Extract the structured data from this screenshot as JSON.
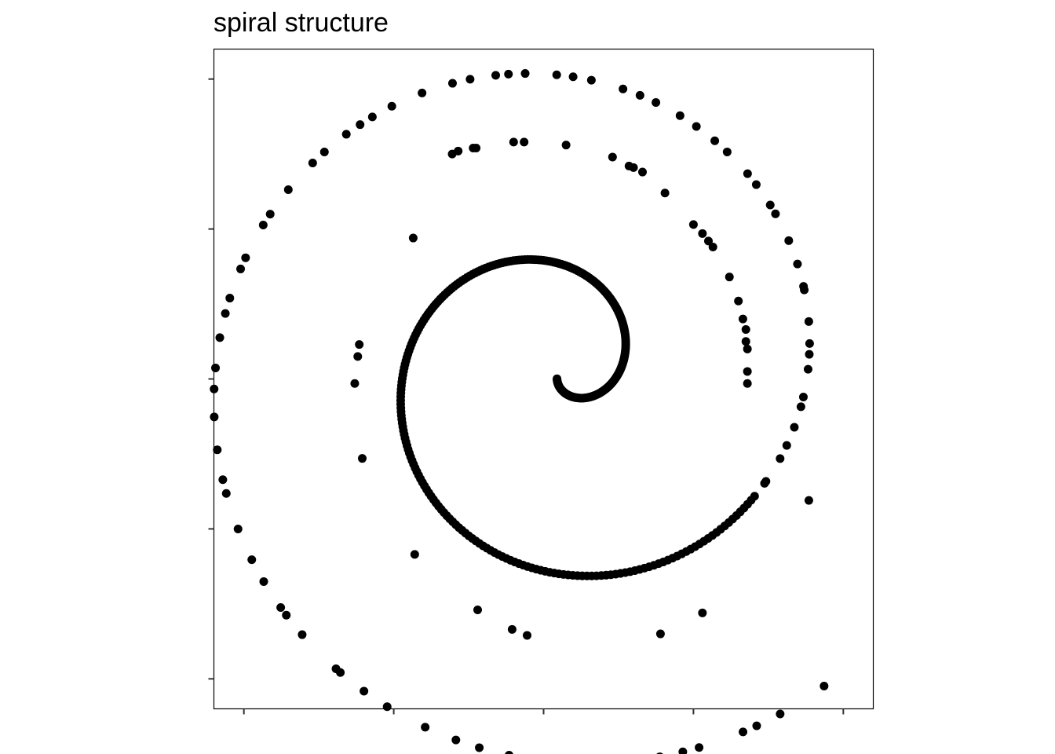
{
  "chart_data": {
    "type": "scatter",
    "title": "spiral structure",
    "xlabel": "",
    "ylabel": "",
    "xlim": [
      -2.2,
      2.2
    ],
    "ylim": [
      -2.2,
      2.2
    ],
    "x_ticks": [
      -2,
      -1,
      0,
      1,
      2
    ],
    "y_ticks": [
      -2,
      -1,
      0,
      1,
      2
    ],
    "tick_labels_shown": false,
    "grid": false,
    "legend": "none",
    "point_color": "#000000",
    "spiral": {
      "center": [
        0.1,
        0.05
      ],
      "r0": 0.05,
      "k": 0.2,
      "theta0": 4.5,
      "theta1": 18.0,
      "dense_until": 12.0,
      "n_dense": 330,
      "n_sparse": 80
    },
    "outer_points": [
      [
        -0.61,
        1.5
      ],
      [
        -0.57,
        1.52
      ],
      [
        -0.47,
        1.54
      ],
      [
        -0.45,
        1.54
      ],
      [
        -0.2,
        1.58
      ],
      [
        -0.13,
        1.58
      ],
      [
        0.15,
        1.56
      ],
      [
        0.46,
        1.48
      ],
      [
        0.57,
        1.42
      ],
      [
        0.6,
        1.41
      ],
      [
        0.66,
        1.38
      ],
      [
        0.81,
        1.24
      ],
      [
        1.0,
        1.03
      ],
      [
        1.06,
        0.97
      ],
      [
        1.1,
        0.92
      ],
      [
        1.13,
        0.88
      ],
      [
        1.24,
        0.68
      ],
      [
        1.3,
        0.52
      ],
      [
        1.33,
        0.4
      ],
      [
        1.35,
        0.33
      ],
      [
        1.35,
        0.25
      ],
      [
        1.36,
        0.2
      ],
      [
        1.36,
        0.05
      ],
      [
        1.36,
        -0.03
      ],
      [
        -1.23,
        0.23
      ],
      [
        -1.24,
        0.15
      ],
      [
        -1.26,
        -0.03
      ],
      [
        -1.21,
        -0.53
      ],
      [
        -0.87,
        0.94
      ],
      [
        -0.86,
        -1.17
      ],
      [
        -0.44,
        -1.54
      ],
      [
        -0.21,
        -1.67
      ],
      [
        -0.11,
        -1.71
      ],
      [
        0.78,
        -1.7
      ],
      [
        1.06,
        -1.56
      ],
      [
        1.77,
        -0.81
      ]
    ]
  }
}
